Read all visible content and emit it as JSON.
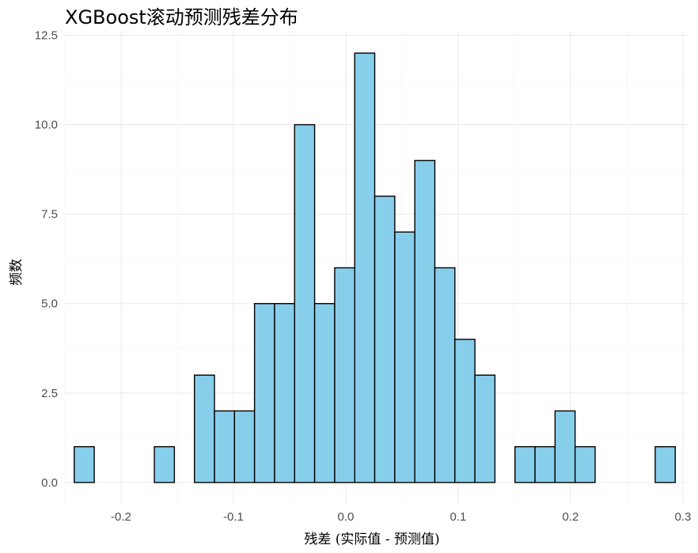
{
  "chart_data": {
    "type": "bar",
    "title": "XGBoost滚动预测残差分布",
    "xlabel": "残差 (实际值 - 预测值)",
    "ylabel": "频数",
    "bin_width": 0.01783,
    "x_start": -0.2417,
    "xlim": [
      -0.25,
      0.305
    ],
    "ylim": [
      -0.6,
      12.6
    ],
    "x_ticks": [
      -0.2,
      -0.1,
      0.0,
      0.1,
      0.2,
      0.3
    ],
    "x_tick_labels": [
      "-0.2",
      "-0.1",
      "0.0",
      "0.1",
      "0.2",
      "0.3"
    ],
    "y_ticks": [
      0.0,
      2.5,
      5.0,
      7.5,
      10.0,
      12.5
    ],
    "y_tick_labels": [
      "0.0",
      "2.5",
      "5.0",
      "7.5",
      "10.0",
      "12.5"
    ],
    "values": [
      1,
      0,
      0,
      0,
      1,
      0,
      3,
      2,
      2,
      5,
      5,
      10,
      5,
      6,
      12,
      8,
      7,
      9,
      6,
      4,
      3,
      0,
      1,
      1,
      2,
      1,
      0,
      0,
      0,
      1
    ],
    "fill_color": "#87ceeb",
    "edge_color": "#000000",
    "grid": true,
    "legend": "none"
  }
}
